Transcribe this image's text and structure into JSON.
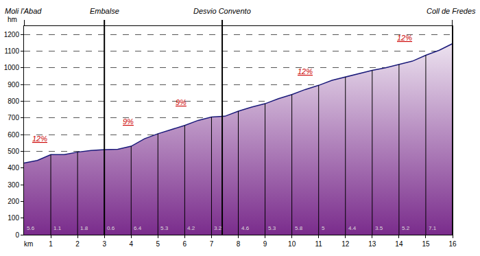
{
  "chart_data": {
    "type": "area",
    "x_label": "km",
    "y_label": "hm",
    "x": [
      0,
      0.5,
      1,
      1.5,
      2,
      2.5,
      3,
      3.5,
      4,
      4.5,
      5,
      5.5,
      6,
      6.5,
      7,
      7.5,
      8,
      8.5,
      9,
      9.5,
      10,
      10.5,
      11,
      11.5,
      12,
      12.5,
      13,
      13.5,
      14,
      14.5,
      15,
      15.5,
      16
    ],
    "values": [
      430,
      445,
      480,
      480,
      495,
      505,
      510,
      512,
      530,
      575,
      605,
      630,
      655,
      685,
      705,
      710,
      740,
      765,
      785,
      815,
      840,
      870,
      895,
      925,
      945,
      965,
      985,
      1000,
      1020,
      1040,
      1075,
      1105,
      1145
    ],
    "color": "#1a1a7a",
    "xlim": [
      0,
      16
    ],
    "ylim": [
      0,
      1250
    ],
    "xticks": [
      1,
      2,
      3,
      4,
      5,
      6,
      7,
      8,
      9,
      10,
      11,
      12,
      13,
      14,
      15,
      16
    ],
    "yticks": [
      0,
      100,
      200,
      300,
      400,
      500,
      600,
      700,
      800,
      900,
      1000,
      1100,
      1200
    ],
    "grid": true,
    "places": [
      {
        "label": "Moli l'Abad",
        "x": 0
      },
      {
        "label": "Embalse",
        "x": 3
      },
      {
        "label": "Desvio Convento",
        "x": 7.4
      },
      {
        "label": "Coll de Fredes",
        "x": 16
      }
    ],
    "annotations": [
      {
        "text": "12%",
        "x": 0.6,
        "y": 543
      },
      {
        "text": "9%",
        "x": 3.9,
        "y": 645
      },
      {
        "text": "9%",
        "x": 5.85,
        "y": 760
      },
      {
        "text": "12%",
        "x": 10.5,
        "y": 945
      },
      {
        "text": "12%",
        "x": 14.2,
        "y": 1147
      }
    ],
    "km_grades": {
      "x": [
        0,
        1,
        2,
        3,
        4,
        5,
        6,
        7,
        8,
        9,
        10,
        11,
        12,
        13,
        14,
        15
      ],
      "values": [
        5.6,
        1.1,
        1.8,
        0.6,
        6.4,
        5.3,
        4.2,
        3.2,
        4.6,
        5.3,
        5.8,
        5.0,
        4.4,
        3.5,
        5.2,
        7.1
      ]
    }
  }
}
